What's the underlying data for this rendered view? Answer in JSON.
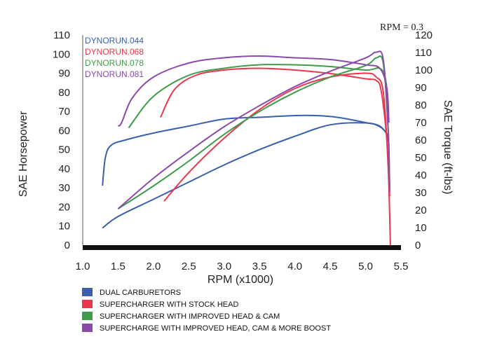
{
  "chart_data": {
    "type": "line",
    "xlabel": "RPM (x1000)",
    "ylabel_left": "SAE Horsepower",
    "ylabel_right": "SAE Torque (ft-lbs)",
    "annotation": "RPM = 0.3",
    "xlim": [
      1.0,
      5.5
    ],
    "ylim_left": [
      0,
      110
    ],
    "ylim_right": [
      0,
      120
    ],
    "x_ticks": [
      "1.0",
      "1.5",
      "2.0",
      "2.5",
      "3.0",
      "3.5",
      "4.0",
      "4.5",
      "5.0",
      "5.5"
    ],
    "y_ticks_left": [
      "0",
      "10",
      "20",
      "30",
      "40",
      "50",
      "60",
      "70",
      "80",
      "90",
      "100",
      "110"
    ],
    "y_ticks_right": [
      "0",
      "10",
      "20",
      "30",
      "40",
      "50",
      "60",
      "70",
      "80",
      "90",
      "100",
      "110",
      "120"
    ],
    "grid": false,
    "run_labels": [
      "DYNORUN.044",
      "DYNORUN.068",
      "DYNORUN.078",
      "DYNORUN.081"
    ],
    "legend": {
      "placement": "bottom-left",
      "entries": [
        "DUAL CARBURETORS",
        "SUPERCHARGER WITH STOCK HEAD",
        "SUPERCHARGER WITH IMPROVED HEAD & CAM",
        "SUPERCHARGE WITH IMPROVED HEAD, CAM & MORE BOOST"
      ]
    },
    "series": [
      {
        "color": "#3a5fae",
        "horsepower": {
          "x": [
            1.28,
            1.5,
            2.0,
            2.5,
            3.0,
            3.5,
            4.0,
            4.5,
            5.0,
            5.2,
            5.3,
            5.33
          ],
          "y": [
            9,
            15,
            24,
            33,
            42,
            50,
            57,
            63,
            64,
            62,
            58,
            52
          ]
        },
        "torque": {
          "x": [
            1.28,
            1.32,
            1.4,
            1.6,
            2.0,
            2.5,
            3.0,
            3.5,
            4.0,
            4.3,
            4.6,
            5.0,
            5.2,
            5.33
          ],
          "y": [
            34,
            50,
            57,
            60,
            64,
            68,
            72,
            73,
            74,
            74,
            73,
            70,
            68,
            62
          ]
        }
      },
      {
        "color": "#e8384f",
        "horsepower": {
          "x": [
            2.15,
            2.5,
            3.0,
            3.5,
            4.0,
            4.5,
            5.0,
            5.15,
            5.25,
            5.32,
            5.35
          ],
          "y": [
            23,
            38,
            56,
            71,
            82,
            88,
            90,
            88,
            80,
            40,
            0
          ]
        },
        "torque": {
          "x": [
            2.1,
            2.3,
            2.6,
            3.0,
            3.5,
            4.0,
            4.5,
            5.0,
            5.15,
            5.22,
            5.3,
            5.34
          ],
          "y": [
            73,
            89,
            97,
            100,
            101,
            100,
            98,
            95,
            94,
            88,
            60,
            28
          ]
        }
      },
      {
        "color": "#3f9c4a",
        "horsepower": {
          "x": [
            1.5,
            2.0,
            2.5,
            3.0,
            3.5,
            4.0,
            4.5,
            5.0,
            5.15,
            5.25,
            5.32,
            5.34
          ],
          "y": [
            19,
            31,
            44,
            58,
            70,
            80,
            88,
            94,
            98,
            95,
            60,
            30
          ]
        },
        "torque": {
          "x": [
            1.65,
            2.0,
            2.5,
            3.0,
            3.5,
            4.0,
            4.5,
            5.0,
            5.2,
            5.28,
            5.32
          ],
          "y": [
            67,
            85,
            97,
            101,
            103,
            103,
            102,
            100,
            101,
            95,
            80
          ]
        }
      },
      {
        "color": "#8a4aa9",
        "horsepower": {
          "x": [
            1.5,
            2.0,
            2.5,
            3.0,
            3.5,
            4.0,
            4.5,
            5.0,
            5.15,
            5.25,
            5.32,
            5.34
          ],
          "y": [
            19,
            35,
            49,
            62,
            73,
            83,
            91,
            98,
            101,
            97,
            60,
            28
          ]
        },
        "torque": {
          "x": [
            1.5,
            1.55,
            1.7,
            2.0,
            2.5,
            3.0,
            3.5,
            4.0,
            4.5,
            5.0,
            5.2,
            5.3,
            5.33
          ],
          "y": [
            68,
            70,
            84,
            96,
            104,
            107,
            108,
            107,
            106,
            103,
            101,
            90,
            70
          ]
        }
      }
    ]
  }
}
